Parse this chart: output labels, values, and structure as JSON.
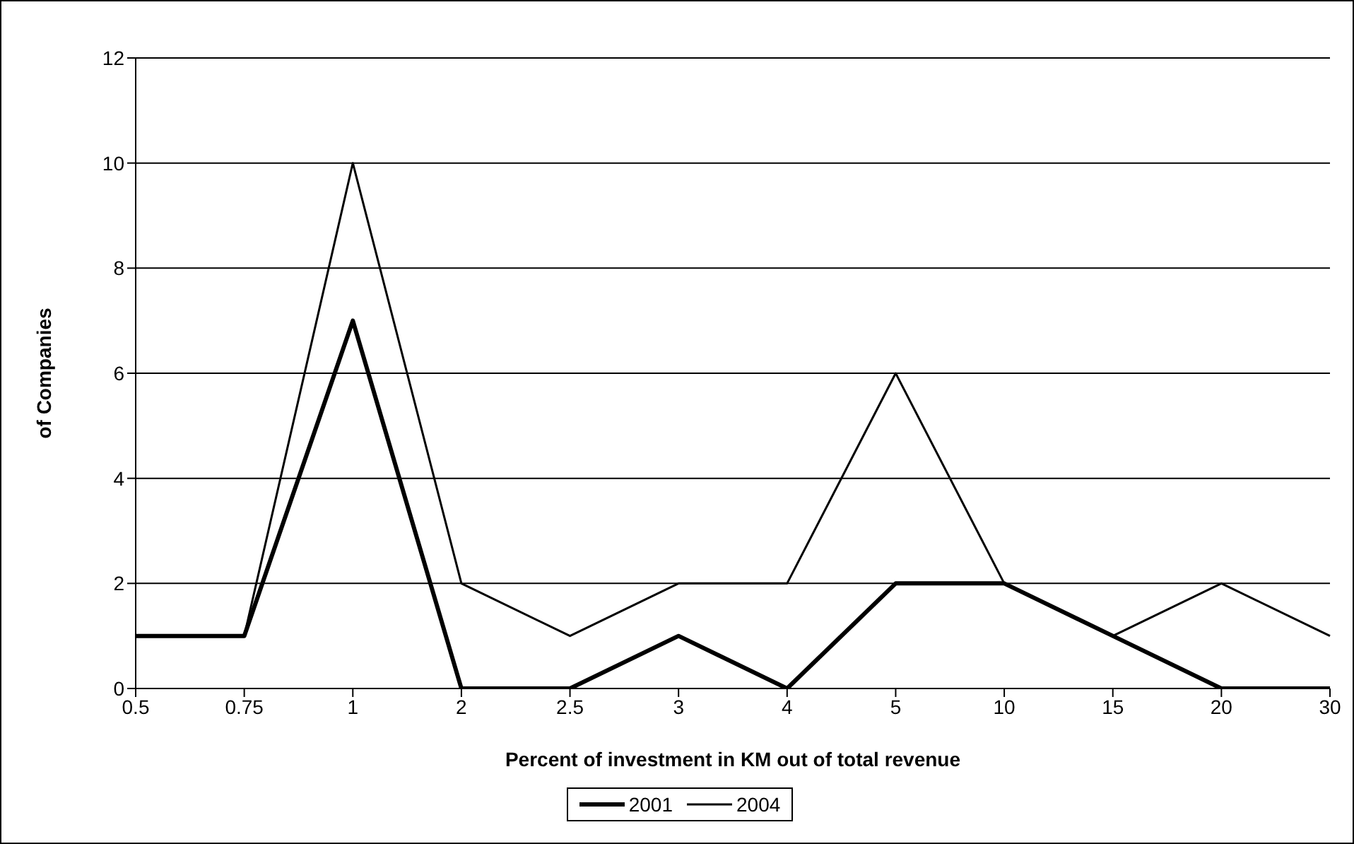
{
  "chart_data": {
    "type": "line",
    "xlabel": "Percent of investment in KM out of total revenue",
    "ylabel": "of Companies",
    "categories": [
      "0.5",
      "0.75",
      "1",
      "2",
      "2.5",
      "3",
      "4",
      "5",
      "10",
      "15",
      "20",
      "30"
    ],
    "series": [
      {
        "name": "2001",
        "color": "#000000",
        "values": [
          1,
          1,
          7,
          0,
          0,
          1,
          0,
          2,
          2,
          1,
          0,
          0
        ]
      },
      {
        "name": "2004",
        "color": "#000000",
        "values": [
          1,
          1,
          10,
          2,
          1,
          2,
          2,
          6,
          2,
          1,
          2,
          1
        ]
      }
    ],
    "ylim": [
      0,
      12
    ],
    "yticks": [
      0,
      2,
      4,
      6,
      8,
      10,
      12
    ],
    "grid": "y",
    "legend": "bottom",
    "marker": "none",
    "line_style": "solid"
  }
}
